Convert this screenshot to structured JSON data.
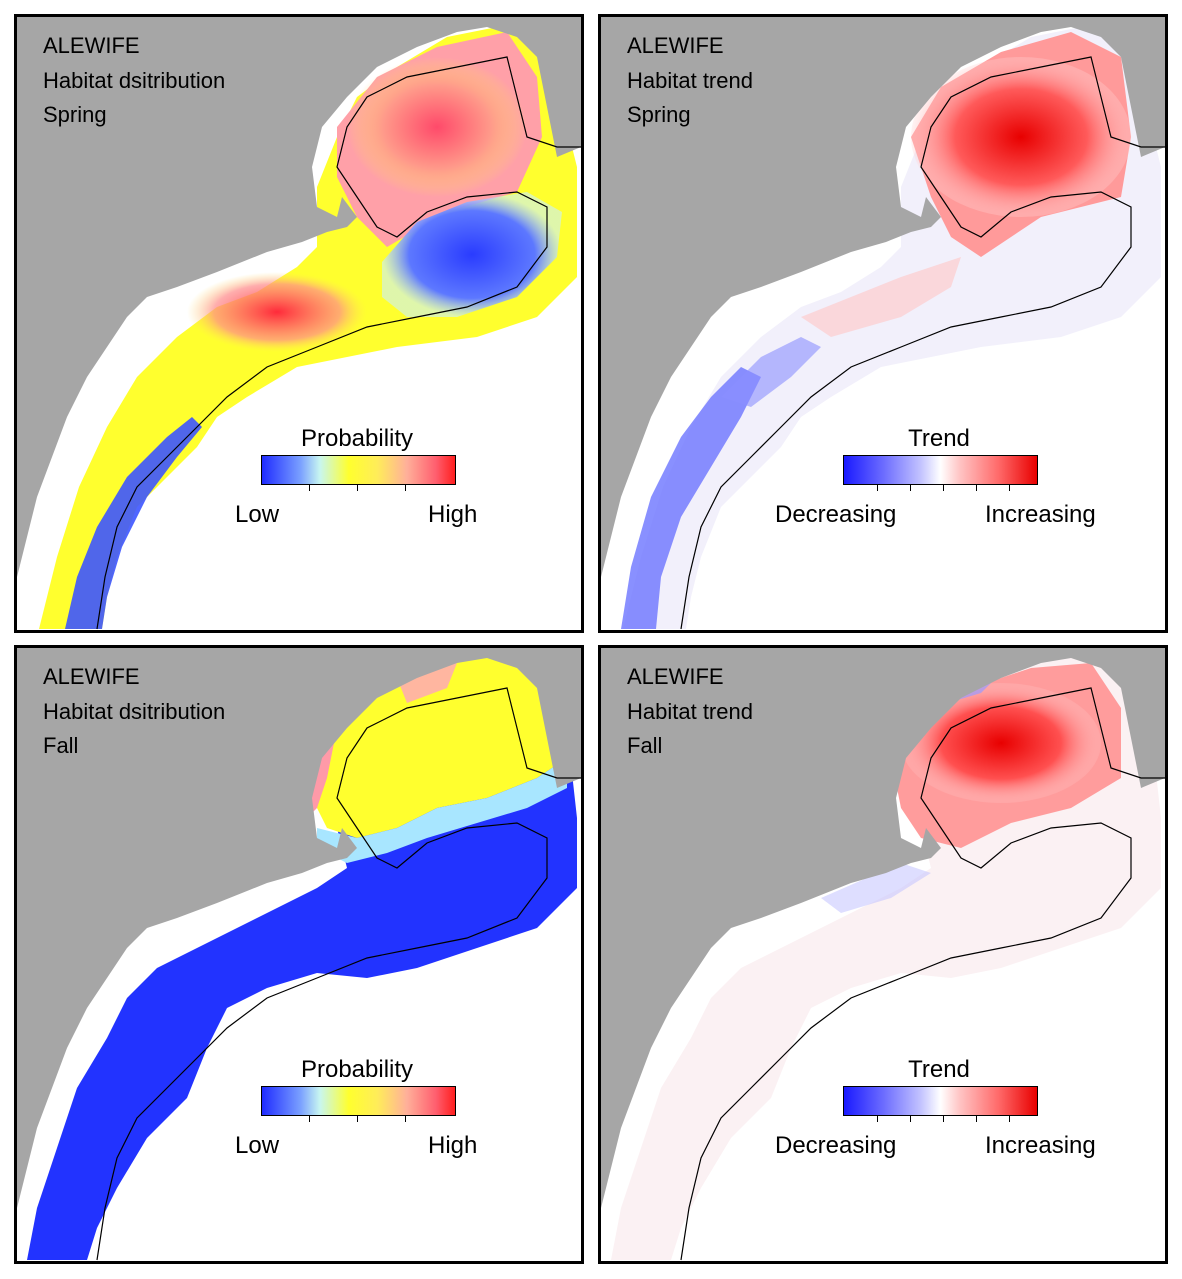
{
  "colors": {
    "land": "#a6a6a6",
    "ocean": "#ffffff",
    "low": "#1f2bff",
    "mid": "#ffff2e",
    "high": "#ff1f1f",
    "decreasing": "#1a1aff",
    "increasing": "#e80000"
  },
  "panels": [
    {
      "species": "ALEWIFE",
      "metric": "Habitat dsitribution",
      "season": "Spring",
      "legend": {
        "title": "Probability",
        "low_label": "Low",
        "high_label": "High",
        "type": "probability"
      }
    },
    {
      "species": "ALEWIFE",
      "metric": "Habitat trend",
      "season": "Spring",
      "legend": {
        "title": "Trend",
        "low_label": "Decreasing",
        "high_label": "Increasing",
        "type": "trend"
      }
    },
    {
      "species": "ALEWIFE",
      "metric": "Habitat dsitribution",
      "season": "Fall",
      "legend": {
        "title": "Probability",
        "low_label": "Low",
        "high_label": "High",
        "type": "probability"
      }
    },
    {
      "species": "ALEWIFE",
      "metric": "Habitat trend",
      "season": "Fall",
      "legend": {
        "title": "Trend",
        "low_label": "Decreasing",
        "high_label": "Increasing",
        "type": "trend"
      }
    }
  ]
}
